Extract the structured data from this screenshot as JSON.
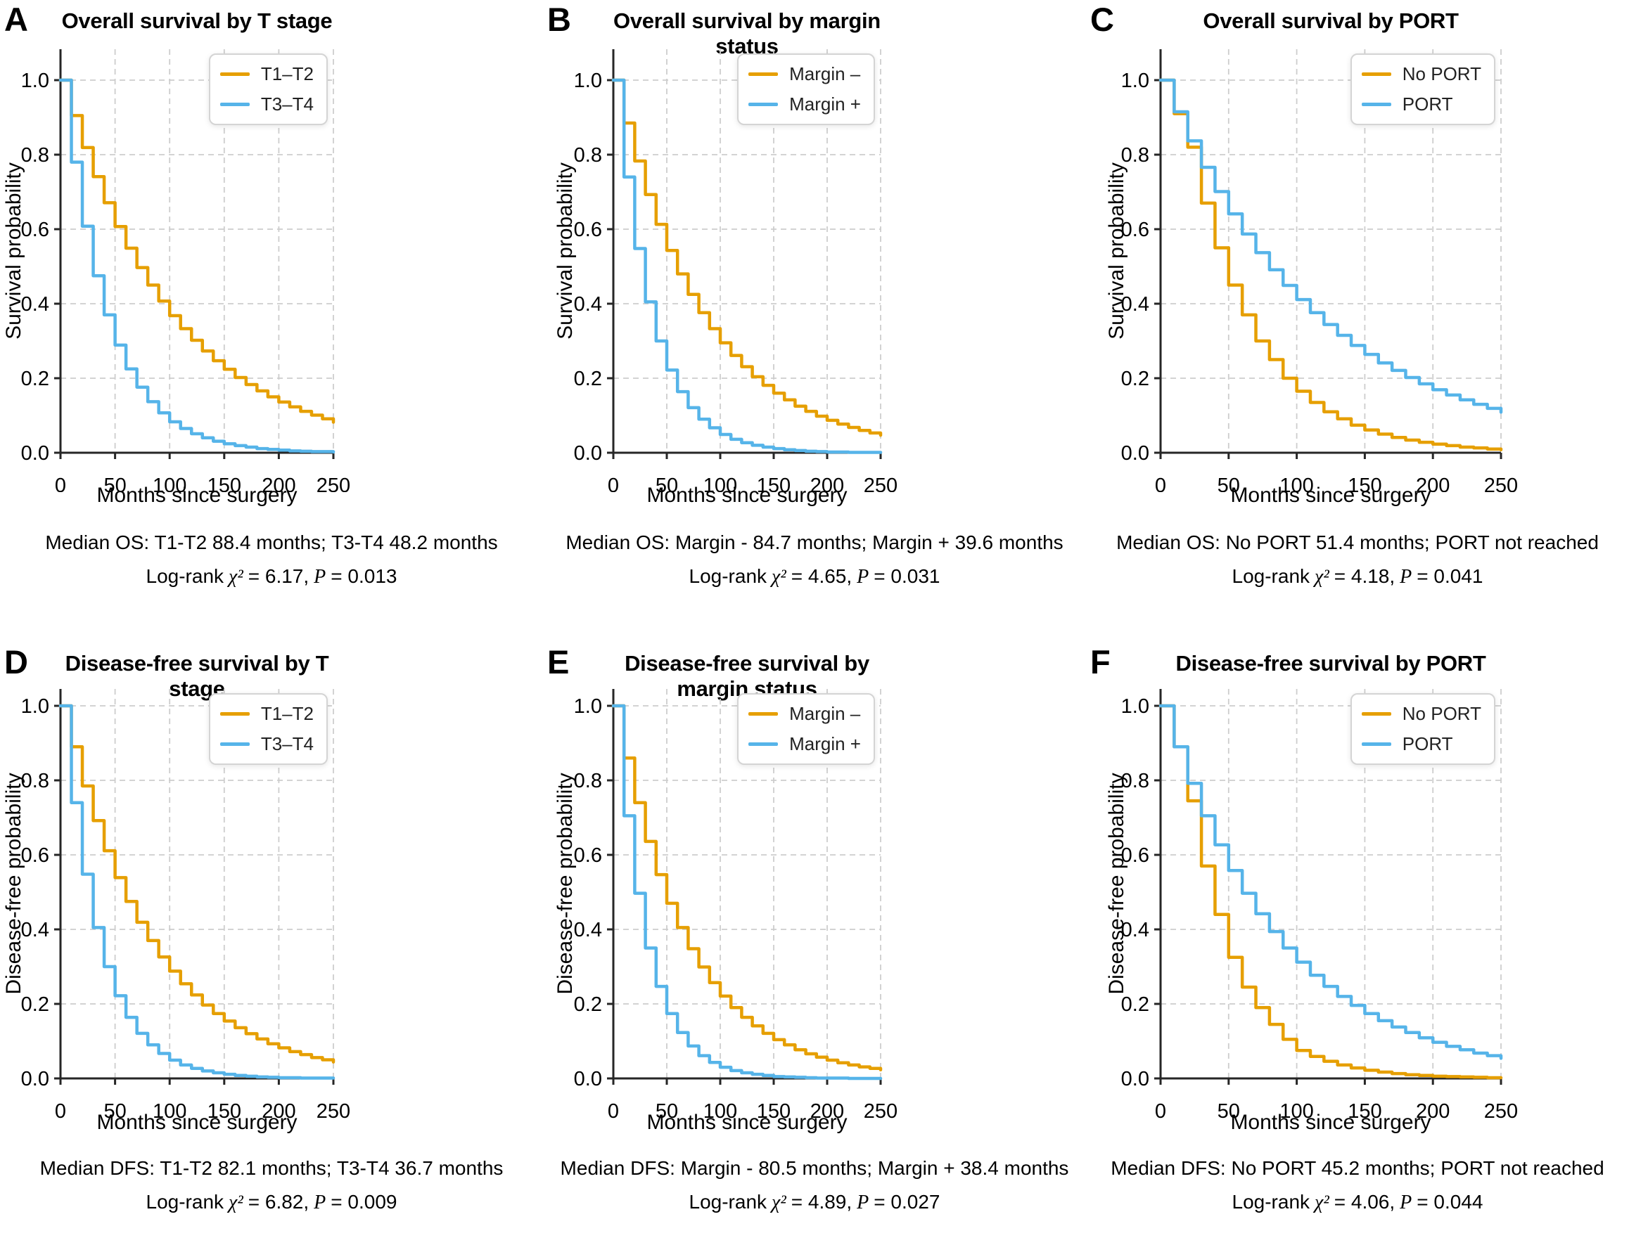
{
  "figure": {
    "background": "#ffffff",
    "grid_color": "#cdcdcd",
    "spine_color": "#262626",
    "text_color": "#000000"
  },
  "x_months": [
    0,
    10,
    20,
    30,
    40,
    50,
    60,
    70,
    80,
    90,
    100,
    110,
    120,
    130,
    140,
    150,
    160,
    170,
    180,
    190,
    200,
    210,
    220,
    230,
    240,
    250
  ],
  "chart_data": [
    {
      "type": "line",
      "panel_label": "A",
      "title": "Overall survival by T stage",
      "xlabel": "Months since surgery",
      "ylabel": "Survival probability",
      "xlim": [
        0,
        250
      ],
      "ylim": [
        0,
        1.05
      ],
      "xticks": [
        0,
        50,
        100,
        150,
        200,
        250
      ],
      "yticks": [
        "0.0",
        "0.2",
        "0.4",
        "0.6",
        "0.8",
        "1.0"
      ],
      "grid": "dashed",
      "legend_position": "top-right",
      "series": [
        {
          "name": "T1–T2",
          "color": "#E69F00",
          "values": [
            1.0,
            0.905,
            0.819,
            0.741,
            0.671,
            0.607,
            0.549,
            0.497,
            0.45,
            0.407,
            0.368,
            0.333,
            0.302,
            0.273,
            0.247,
            0.224,
            0.202,
            0.183,
            0.166,
            0.15,
            0.136,
            0.123,
            0.111,
            0.101,
            0.091,
            0.082
          ]
        },
        {
          "name": "T3–T4",
          "color": "#56B4E9",
          "values": [
            1.0,
            0.78,
            0.608,
            0.475,
            0.37,
            0.289,
            0.225,
            0.176,
            0.137,
            0.107,
            0.083,
            0.065,
            0.051,
            0.04,
            0.031,
            0.024,
            0.019,
            0.015,
            0.011,
            0.009,
            0.007,
            0.005,
            0.004,
            0.003,
            0.003,
            0.002
          ]
        }
      ],
      "median_text": "Median OS: T1-T2 88.4 months; T3-T4 48.2 months",
      "stats": {
        "prefix": "Log-rank",
        "chi": "χ²",
        "chi_eq": "= 6.17,",
        "p": "P",
        "p_eq": "= 0.013"
      }
    },
    {
      "type": "line",
      "panel_label": "B",
      "title": "Overall survival by margin status",
      "xlabel": "Months since surgery",
      "ylabel": "Survival probability",
      "xlim": [
        0,
        250
      ],
      "ylim": [
        0,
        1.05
      ],
      "xticks": [
        0,
        50,
        100,
        150,
        200,
        250
      ],
      "yticks": [
        "0.0",
        "0.2",
        "0.4",
        "0.6",
        "0.8",
        "1.0"
      ],
      "grid": "dashed",
      "legend_position": "top-right",
      "series": [
        {
          "name": "Margin –",
          "color": "#E69F00",
          "values": [
            1.0,
            0.885,
            0.783,
            0.693,
            0.613,
            0.543,
            0.48,
            0.425,
            0.376,
            0.333,
            0.295,
            0.261,
            0.231,
            0.204,
            0.181,
            0.16,
            0.142,
            0.125,
            0.111,
            0.098,
            0.087,
            0.077,
            0.068,
            0.06,
            0.053,
            0.047
          ]
        },
        {
          "name": "Margin +",
          "color": "#56B4E9",
          "values": [
            1.0,
            0.74,
            0.548,
            0.405,
            0.3,
            0.222,
            0.164,
            0.121,
            0.09,
            0.067,
            0.049,
            0.036,
            0.027,
            0.02,
            0.015,
            0.011,
            0.008,
            0.006,
            0.004,
            0.003,
            0.002,
            0.002,
            0.001,
            0.001,
            0.001,
            0.001
          ]
        }
      ],
      "median_text": "Median OS: Margin - 84.7 months; Margin + 39.6 months",
      "stats": {
        "prefix": "Log-rank",
        "chi": "χ²",
        "chi_eq": "= 4.65,",
        "p": "P",
        "p_eq": "= 0.031"
      }
    },
    {
      "type": "line",
      "panel_label": "C",
      "title": "Overall survival by PORT",
      "xlabel": "Months since surgery",
      "ylabel": "Survival probability",
      "xlim": [
        0,
        250
      ],
      "ylim": [
        0,
        1.05
      ],
      "xticks": [
        0,
        50,
        100,
        150,
        200,
        250
      ],
      "yticks": [
        "0.0",
        "0.2",
        "0.4",
        "0.6",
        "0.8",
        "1.0"
      ],
      "grid": "dashed",
      "legend_position": "top-right",
      "series": [
        {
          "name": "No PORT",
          "color": "#E69F00",
          "values": [
            1.0,
            0.91,
            0.82,
            0.67,
            0.55,
            0.45,
            0.37,
            0.3,
            0.25,
            0.2,
            0.165,
            0.135,
            0.11,
            0.091,
            0.074,
            0.061,
            0.05,
            0.041,
            0.034,
            0.028,
            0.023,
            0.019,
            0.015,
            0.013,
            0.01,
            0.008
          ]
        },
        {
          "name": "PORT",
          "color": "#56B4E9",
          "values": [
            1.0,
            0.915,
            0.837,
            0.766,
            0.701,
            0.641,
            0.587,
            0.537,
            0.491,
            0.449,
            0.411,
            0.376,
            0.344,
            0.315,
            0.288,
            0.264,
            0.241,
            0.221,
            0.202,
            0.185,
            0.169,
            0.155,
            0.142,
            0.13,
            0.119,
            0.109
          ]
        }
      ],
      "median_text": "Median OS: No PORT 51.4 months; PORT not reached",
      "stats": {
        "prefix": "Log-rank",
        "chi": "χ²",
        "chi_eq": "= 4.18,",
        "p": "P",
        "p_eq": "= 0.041"
      }
    },
    {
      "type": "line",
      "panel_label": "D",
      "title": "Disease-free survival by T stage",
      "xlabel": "Months since surgery",
      "ylabel": "Disease-free probability",
      "xlim": [
        0,
        250
      ],
      "ylim": [
        0,
        1.05
      ],
      "xticks": [
        0,
        50,
        100,
        150,
        200,
        250
      ],
      "yticks": [
        "0.0",
        "0.2",
        "0.4",
        "0.6",
        "0.8",
        "1.0"
      ],
      "grid": "dashed",
      "legend_position": "top-right",
      "series": [
        {
          "name": "T1–T2",
          "color": "#E69F00",
          "values": [
            1.0,
            0.89,
            0.785,
            0.692,
            0.611,
            0.539,
            0.475,
            0.419,
            0.37,
            0.326,
            0.288,
            0.254,
            0.224,
            0.197,
            0.174,
            0.154,
            0.136,
            0.12,
            0.106,
            0.093,
            0.082,
            0.072,
            0.064,
            0.056,
            0.05,
            0.044
          ]
        },
        {
          "name": "T3–T4",
          "color": "#56B4E9",
          "values": [
            1.0,
            0.74,
            0.548,
            0.405,
            0.3,
            0.222,
            0.164,
            0.121,
            0.09,
            0.067,
            0.049,
            0.036,
            0.027,
            0.02,
            0.015,
            0.011,
            0.008,
            0.006,
            0.004,
            0.003,
            0.002,
            0.002,
            0.001,
            0.001,
            0.001,
            0.001
          ]
        }
      ],
      "median_text": "Median DFS: T1-T2 82.1 months; T3-T4 36.7 months",
      "stats": {
        "prefix": "Log-rank",
        "chi": "χ²",
        "chi_eq": "= 6.82,",
        "p": "P",
        "p_eq": "= 0.009"
      }
    },
    {
      "type": "line",
      "panel_label": "E",
      "title": "Disease-free survival by margin status",
      "xlabel": "Months since surgery",
      "ylabel": "Disease-free probability",
      "xlim": [
        0,
        250
      ],
      "ylim": [
        0,
        1.05
      ],
      "xticks": [
        0,
        50,
        100,
        150,
        200,
        250
      ],
      "yticks": [
        "0.0",
        "0.2",
        "0.4",
        "0.6",
        "0.8",
        "1.0"
      ],
      "grid": "dashed",
      "legend_position": "top-right",
      "series": [
        {
          "name": "Margin –",
          "color": "#E69F00",
          "values": [
            1.0,
            0.86,
            0.74,
            0.636,
            0.547,
            0.47,
            0.405,
            0.348,
            0.299,
            0.257,
            0.221,
            0.19,
            0.164,
            0.141,
            0.121,
            0.104,
            0.09,
            0.077,
            0.066,
            0.057,
            0.049,
            0.042,
            0.036,
            0.031,
            0.027,
            0.023
          ]
        },
        {
          "name": "Margin +",
          "color": "#56B4E9",
          "values": [
            1.0,
            0.705,
            0.497,
            0.35,
            0.247,
            0.174,
            0.123,
            0.087,
            0.061,
            0.043,
            0.03,
            0.021,
            0.015,
            0.011,
            0.008,
            0.005,
            0.004,
            0.003,
            0.002,
            0.001,
            0.001,
            0.001,
            0.0,
            0.0,
            0.0,
            0.0
          ]
        }
      ],
      "median_text": "Median DFS: Margin - 80.5 months; Margin + 38.4 months",
      "stats": {
        "prefix": "Log-rank",
        "chi": "χ²",
        "chi_eq": "= 4.89,",
        "p": "P",
        "p_eq": "= 0.027"
      }
    },
    {
      "type": "line",
      "panel_label": "F",
      "title": "Disease-free survival by PORT",
      "xlabel": "Months since surgery",
      "ylabel": "Disease-free probability",
      "xlim": [
        0,
        250
      ],
      "ylim": [
        0,
        1.05
      ],
      "xticks": [
        0,
        50,
        100,
        150,
        200,
        250
      ],
      "yticks": [
        "0.0",
        "0.2",
        "0.4",
        "0.6",
        "0.8",
        "1.0"
      ],
      "grid": "dashed",
      "legend_position": "top-right",
      "series": [
        {
          "name": "No PORT",
          "color": "#E69F00",
          "values": [
            1.0,
            0.89,
            0.745,
            0.57,
            0.44,
            0.325,
            0.245,
            0.19,
            0.145,
            0.105,
            0.075,
            0.059,
            0.046,
            0.036,
            0.028,
            0.022,
            0.017,
            0.013,
            0.01,
            0.008,
            0.006,
            0.005,
            0.004,
            0.003,
            0.002,
            0.002
          ]
        },
        {
          "name": "PORT",
          "color": "#56B4E9",
          "values": [
            1.0,
            0.89,
            0.792,
            0.705,
            0.627,
            0.558,
            0.497,
            0.442,
            0.394,
            0.35,
            0.312,
            0.277,
            0.247,
            0.22,
            0.196,
            0.174,
            0.155,
            0.138,
            0.123,
            0.109,
            0.097,
            0.086,
            0.077,
            0.068,
            0.061,
            0.054
          ]
        }
      ],
      "median_text": "Median DFS: No PORT 45.2 months; PORT not reached",
      "stats": {
        "prefix": "Log-rank",
        "chi": "χ²",
        "chi_eq": "= 4.06,",
        "p": "P",
        "p_eq": "= 0.044"
      }
    }
  ]
}
